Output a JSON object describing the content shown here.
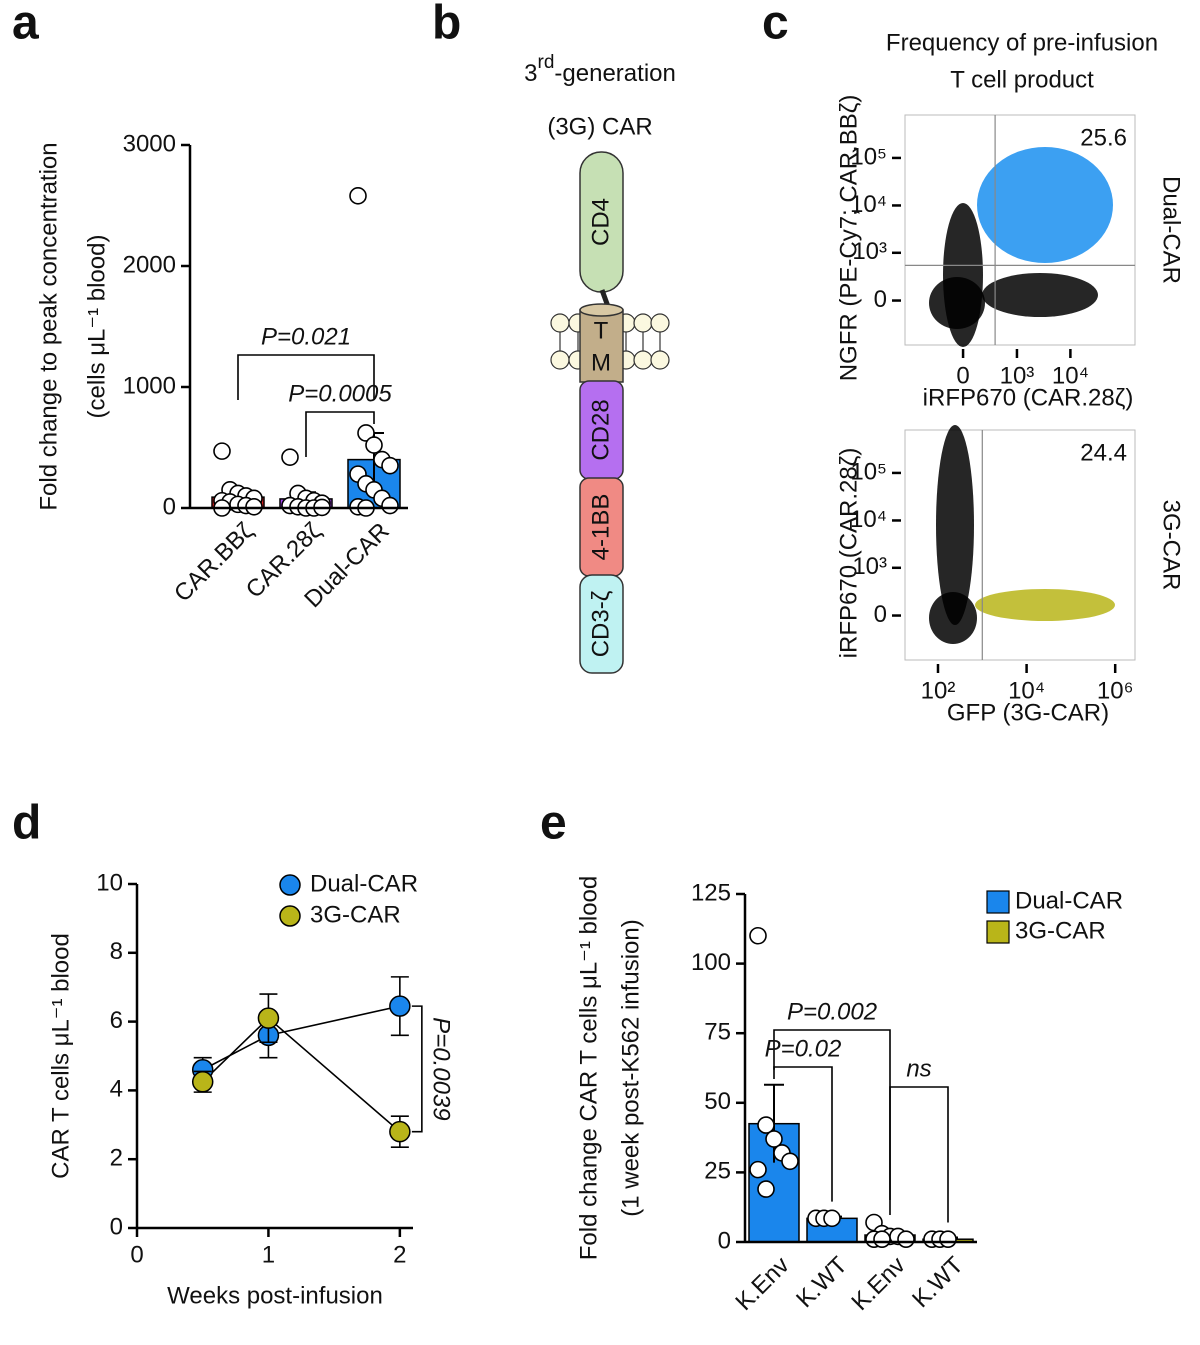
{
  "chart_data": [
    {
      "panel": "a",
      "type": "bar",
      "ylabel": [
        "Fold change to peak concentration",
        "(cells μL⁻¹ blood)"
      ],
      "categories": [
        "CAR.BBζ",
        "CAR.28ζ",
        "Dual-CAR"
      ],
      "colors": [
        "#e02020",
        "#a544f0",
        "#1a86ec"
      ],
      "values": [
        90,
        75,
        400
      ],
      "errors": [
        60,
        55,
        220
      ],
      "points": [
        [
          470,
          150,
          120,
          100,
          80,
          60,
          50,
          30,
          20,
          10,
          0
        ],
        [
          420,
          120,
          80,
          60,
          40,
          20,
          10,
          0,
          0,
          5
        ],
        [
          2580,
          620,
          520,
          400,
          350,
          280,
          200,
          150,
          80,
          20,
          10,
          0
        ]
      ],
      "ylim": [
        0,
        3000
      ],
      "yticks": [
        0,
        1000,
        2000,
        3000
      ],
      "comparisons": [
        {
          "label": "P=0.021",
          "between": [
            0,
            2
          ]
        },
        {
          "label": "P=0.0005",
          "between": [
            1,
            2
          ]
        }
      ]
    },
    {
      "panel": "c",
      "type": "flow",
      "title": [
        "Frequency of pre-infusion",
        "T cell product"
      ],
      "sample": "Dual-CAR",
      "xlabel": "iRFP670 (CAR.28ζ)",
      "ylabel": "NGFR (PE-Cy7; CAR.BBζ)",
      "quadrant_value": 25.6,
      "color": "#1a8ff0",
      "xscale": "biexponential",
      "yscale": "biexponential",
      "xlim": [
        -1200,
        160000
      ],
      "ylim": [
        -850,
        800000
      ],
      "xticks": [
        0,
        {
          "value": 1000,
          "label": "10³"
        },
        {
          "value": 10000,
          "label": "10⁴"
        }
      ],
      "yticks": [
        0,
        {
          "value": 1000,
          "label": "10³"
        },
        {
          "value": 10000,
          "label": "10⁴"
        },
        {
          "value": 100000,
          "label": "10⁵"
        }
      ],
      "gates": {
        "x": 370,
        "y": 530
      }
    },
    {
      "type": "flow",
      "sample": "3G-CAR",
      "xlabel": "GFP (3G-CAR)",
      "ylabel": "iRFP670 (CAR.28ζ)",
      "quadrant_value": 24.4,
      "color": "#b9b519",
      "xscale": "log",
      "yscale": "biexponential",
      "xlim": [
        18,
        2800000
      ],
      "ylim": [
        -850,
        800000
      ],
      "xticks": [
        {
          "value": 100,
          "label": "10²"
        },
        {
          "value": 10000,
          "label": "10⁴"
        },
        {
          "value": 1000000,
          "label": "10⁶"
        }
      ],
      "yticks": [
        0,
        {
          "value": 1000,
          "label": "10³"
        },
        {
          "value": 10000,
          "label": "10⁴"
        },
        {
          "value": 100000,
          "label": "10⁵"
        }
      ],
      "gates": {
        "x": 1000
      }
    },
    {
      "panel": "d",
      "type": "line",
      "x": [
        0.5,
        1,
        2
      ],
      "series": [
        {
          "name": "Dual-CAR",
          "color": "#1a86ec",
          "values": [
            4.6,
            5.6,
            6.45
          ],
          "errors": [
            0.35,
            0.65,
            0.85
          ]
        },
        {
          "name": "3G-CAR",
          "color": "#b9b519",
          "values": [
            4.25,
            6.1,
            2.8
          ],
          "errors": [
            0.3,
            0.7,
            0.45
          ]
        }
      ],
      "xlim": [
        0,
        2.1
      ],
      "xticks": [
        0,
        1,
        2
      ],
      "ylim": [
        0,
        10
      ],
      "yticks": [
        0,
        2,
        4,
        6,
        8,
        10
      ],
      "xlabel": "Weeks post-infusion",
      "ylabel": "CAR T cells μL⁻¹ blood",
      "annotation": "P=0.0039",
      "legend": "upper right"
    },
    {
      "panel": "e",
      "type": "bar",
      "ylabel": [
        "Fold change CAR T cells μL⁻¹ blood",
        "(1 week post-K562 infusion)"
      ],
      "categories": [
        "K.Env",
        "K.WT",
        "K.Env",
        "K.WT"
      ],
      "series": [
        {
          "name": "Dual-CAR",
          "color": "#1a86ec",
          "values": [
            42.5,
            8.5,
            null,
            null
          ],
          "errors": [
            14,
            0.6,
            null,
            null
          ]
        },
        {
          "name": "3G-CAR",
          "color": "#b9b519",
          "values": [
            null,
            null,
            2.5,
            1
          ],
          "errors": [
            null,
            null,
            1.8,
            0.6
          ]
        }
      ],
      "points": [
        [
          110,
          42,
          37,
          32,
          29,
          26,
          19
        ],
        [
          8.5,
          8.5,
          8.5
        ],
        [
          7,
          3,
          2,
          2,
          1,
          1,
          1
        ],
        [
          1,
          1,
          1
        ]
      ],
      "ylim": [
        0,
        125
      ],
      "yticks": [
        0,
        25,
        50,
        75,
        100,
        125
      ],
      "legend": "upper right",
      "comparisons": [
        {
          "label": "P=0.002",
          "between": [
            0,
            2
          ]
        },
        {
          "label": "P=0.02",
          "between": [
            0,
            1
          ]
        },
        {
          "label": "ns",
          "between": [
            2,
            3
          ]
        }
      ]
    }
  ],
  "diagram": {
    "panel": "b",
    "title": {
      "base": "3",
      "sup": "rd",
      "rest": "-generation",
      "line2": "(3G) CAR"
    },
    "domains": [
      "CD4",
      "T",
      "M",
      "CD28",
      "4-1BB",
      "CD3-ζ"
    ]
  }
}
